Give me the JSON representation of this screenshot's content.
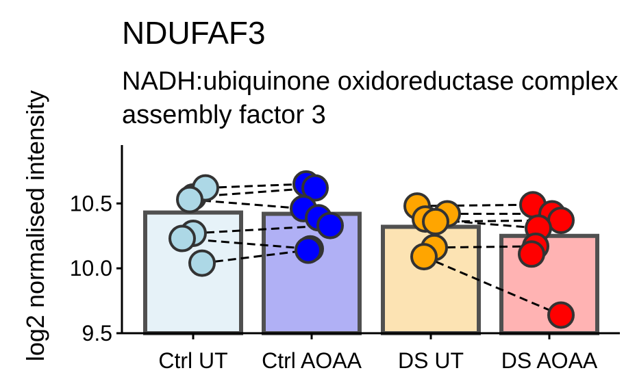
{
  "chart_data": {
    "type": "bar",
    "title": "NDUFAF3",
    "subtitle": [
      "NADH:ubiquinone oxidoreductase complex",
      "assembly factor 3"
    ],
    "ylabel": "log2 normalised intensity",
    "xlabel": "",
    "ylim": [
      9.5,
      10.95
    ],
    "yticks": [
      9.5,
      10.0,
      10.5
    ],
    "ytick_labels": [
      "9.5",
      "10.0",
      "10.5"
    ],
    "categories": [
      "Ctrl UT",
      "Ctrl AOAA",
      "DS UT",
      "DS AOAA"
    ],
    "values": [
      10.43,
      10.42,
      10.32,
      10.25
    ],
    "bar_fill_colors": [
      "#e6f2f8",
      "#b0b0f5",
      "#fce3b3",
      "#ffb3b3"
    ],
    "point_colors": [
      "#add8e6",
      "#0000ff",
      "#ffa500",
      "#ff0000"
    ],
    "bar_outline_color": "#505050",
    "points": [
      [
        10.55,
        10.62,
        10.53,
        10.27,
        10.23,
        10.04
      ],
      [
        10.65,
        10.62,
        10.46,
        10.39,
        10.33,
        10.15,
        10.14
      ],
      [
        10.48,
        10.42,
        10.38,
        10.36,
        10.16,
        10.09
      ],
      [
        10.49,
        10.42,
        10.37,
        10.31,
        10.17,
        10.11,
        9.64
      ]
    ],
    "pair_lines": [
      [
        [
          0,
          1
        ],
        [
          1,
          0
        ]
      ],
      [
        [
          0,
          0
        ],
        [
          1,
          1
        ]
      ],
      [
        [
          0,
          2
        ],
        [
          1,
          2
        ]
      ],
      [
        [
          0,
          3
        ],
        [
          1,
          4
        ]
      ],
      [
        [
          0,
          4
        ],
        [
          1,
          5
        ]
      ],
      [
        [
          0,
          5
        ],
        [
          1,
          6
        ]
      ],
      [
        [
          2,
          0
        ],
        [
          3,
          0
        ]
      ],
      [
        [
          2,
          1
        ],
        [
          3,
          1
        ]
      ],
      [
        [
          2,
          2
        ],
        [
          3,
          3
        ]
      ],
      [
        [
          2,
          3
        ],
        [
          3,
          2
        ]
      ],
      [
        [
          2,
          4
        ],
        [
          3,
          4
        ]
      ],
      [
        [
          2,
          5
        ],
        [
          3,
          6
        ]
      ]
    ]
  }
}
